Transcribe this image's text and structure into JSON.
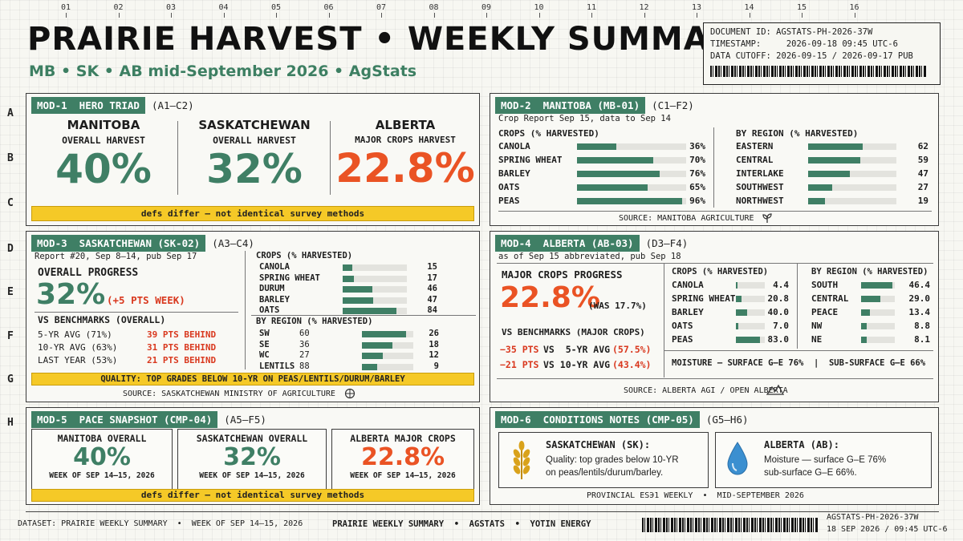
{
  "ruler": {
    "cols": [
      "01",
      "02",
      "03",
      "04",
      "05",
      "06",
      "07",
      "08",
      "09",
      "10",
      "11",
      "12",
      "13",
      "14",
      "15",
      "16"
    ],
    "rows": [
      "A",
      "B",
      "C",
      "D",
      "E",
      "F",
      "G",
      "H"
    ]
  },
  "header": {
    "title": "PRAIRIE HARVEST • WEEKLY SUMMARY",
    "subtitle": "MB • SK • AB mid-September 2026 • AgStats",
    "doc_id": "DOCUMENT ID: AGSTATS-PH-2026-37W",
    "timestamp": "TIMESTAMP:     2026-09-18 09:45 UTC-6",
    "cutoff": "DATA CUTOFF: 2026-09-15 / 2026-09-17 PUB"
  },
  "mod1": {
    "tag": "MOD-1  HERO TRIAD",
    "ref": "(A1–C2)",
    "cards": [
      {
        "title": "MANITOBA",
        "sub": "OVERALL HARVEST",
        "value": "40%"
      },
      {
        "title": "SASKATCHEWAN",
        "sub": "OVERALL HARVEST",
        "value": "32%"
      },
      {
        "title": "ALBERTA",
        "sub": "MAJOR CROPS HARVEST",
        "value": "22.8%"
      }
    ],
    "note": "defs differ — not identical survey methods"
  },
  "mod2": {
    "tag": "MOD-2  MANITOBA (MB-01)",
    "ref": "(C1–F2)",
    "report": "Crop Report Sep 15, data to Sep 14",
    "crops_title": "CROPS (% HARVESTED)",
    "crops": [
      {
        "name": "CANOLA",
        "value": 36,
        "label": "36%"
      },
      {
        "name": "SPRING WHEAT",
        "value": 70,
        "label": "70%"
      },
      {
        "name": "BARLEY",
        "value": 76,
        "label": "76%"
      },
      {
        "name": "OATS",
        "value": 65,
        "label": "65%"
      },
      {
        "name": "PEAS",
        "value": 96,
        "label": "96%"
      }
    ],
    "region_title": "BY REGION (% HARVESTED)",
    "regions": [
      {
        "name": "EASTERN",
        "value": 62,
        "label": "62"
      },
      {
        "name": "CENTRAL",
        "value": 59,
        "label": "59"
      },
      {
        "name": "INTERLAKE",
        "value": 47,
        "label": "47"
      },
      {
        "name": "SOUTHWEST",
        "value": 27,
        "label": "27"
      },
      {
        "name": "NORTHWEST",
        "value": 19,
        "label": "19"
      }
    ],
    "source": "SOURCE: MANITOBA AGRICULTURE"
  },
  "mod3": {
    "tag": "MOD-3  SASKATCHEWAN (SK-02)",
    "ref": "(A3–C4)",
    "report": "Report #20, Sep 8–14, pub Sep 17",
    "progress_label": "OVERALL PROGRESS",
    "progress_value": "32%",
    "progress_delta": "(+5 PTS WEEK)",
    "bench_title": "VS BENCHMARKS (OVERALL)",
    "bench": [
      {
        "name": "5-YR AVG (71%)",
        "value": "39 PTS BEHIND"
      },
      {
        "name": "10-YR AVG (63%)",
        "value": "31 PTS BEHIND"
      },
      {
        "name": "LAST YEAR (53%)",
        "value": "21 PTS BEHIND"
      }
    ],
    "crops_title": "CROPS (% HARVESTED)",
    "crops": [
      {
        "name": "CANOLA",
        "value": 15,
        "label": "15"
      },
      {
        "name": "SPRING WHEAT",
        "value": 17,
        "label": "17"
      },
      {
        "name": "DURUM",
        "value": 46,
        "label": "46"
      },
      {
        "name": "BARLEY",
        "value": 47,
        "label": "47"
      },
      {
        "name": "OATS",
        "value": 84,
        "label": "84"
      }
    ],
    "region_title": "BY REGION (% HARVESTED)",
    "regions": [
      {
        "name": "SW",
        "v1": "60",
        "value": 26,
        "label": "26"
      },
      {
        "name": "SE",
        "v1": "36",
        "value": 18,
        "label": "18"
      },
      {
        "name": "WC",
        "v1": "27",
        "value": 12,
        "label": "12"
      },
      {
        "name": "LENTILS",
        "v1": "88",
        "value": 9,
        "label": "9"
      }
    ],
    "quality": "QUALITY: TOP GRADES BELOW 10-YR ON PEAS/LENTILS/DURUM/BARLEY",
    "source": "SOURCE: SASKATCHEWAN MINISTRY OF AGRICULTURE"
  },
  "mod4": {
    "tag": "MOD-4  ALBERTA (AB-03)",
    "ref": "(D3–F4)",
    "report": "as of Sep 15 abbreviated, pub Sep 18",
    "progress_label": "MAJOR CROPS PROGRESS",
    "progress_value": "22.8%",
    "progress_was": "(WAS 17.7%)",
    "bench_title": "VS BENCHMARKS (MAJOR CROPS)",
    "bench": [
      {
        "pts": "−35 PTS",
        "vs": "VS  5-YR AVG",
        "avg": "(57.5%)"
      },
      {
        "pts": "−21 PTS",
        "vs": "VS 10-YR AVG",
        "avg": "(43.4%)"
      }
    ],
    "crops_title": "CROPS (% HARVESTED)",
    "crops": [
      {
        "name": "CANOLA",
        "value": 4.4,
        "label": "4.4"
      },
      {
        "name": "SPRING WHEAT",
        "value": 20.8,
        "label": "20.8"
      },
      {
        "name": "BARLEY",
        "value": 40.0,
        "label": "40.0"
      },
      {
        "name": "OATS",
        "value": 7.0,
        "label": "7.0"
      },
      {
        "name": "PEAS",
        "value": 83.0,
        "label": "83.0"
      }
    ],
    "region_title": "BY REGION (% HARVESTED)",
    "regions": [
      {
        "name": "SOUTH",
        "value": 46.4,
        "label": "46.4"
      },
      {
        "name": "CENTRAL",
        "value": 29.0,
        "label": "29.0"
      },
      {
        "name": "PEACE",
        "value": 13.4,
        "label": "13.4"
      },
      {
        "name": "NW",
        "value": 8.8,
        "label": "8.8"
      },
      {
        "name": "NE",
        "value": 8.1,
        "label": "8.1"
      }
    ],
    "moisture": "MOISTURE — SURFACE G–E 76%  |  SUB-SURFACE G–E 66%",
    "source": "SOURCE: ALBERTA AGI / OPEN ALBERTA"
  },
  "mod5": {
    "tag": "MOD-5  PACE SNAPSHOT (CMP-04)",
    "ref": "(A5–F5)",
    "cards": [
      {
        "title": "MANITOBA OVERALL",
        "value": "40%",
        "week": "WEEK OF SEP 14–15, 2026"
      },
      {
        "title": "SASKATCHEWAN OVERALL",
        "value": "32%",
        "week": "WEEK OF SEP 14–15, 2026"
      },
      {
        "title": "ALBERTA MAJOR CROPS",
        "value": "22.8%",
        "week": "WEEK OF SEP 14–15, 2026"
      }
    ],
    "note": "defs differ — not identical survey methods"
  },
  "mod6": {
    "tag": "MOD-6  CONDITIONS NOTES (CMP-05)",
    "ref": "(G5–H6)",
    "sk_title": "SASKATCHEWAN (SK):",
    "sk_line1": "Quality: top grades below 10-YR",
    "sk_line2": "on peas/lentils/durum/barley.",
    "ab_title": "ALBERTA (AB):",
    "ab_line1": "Moisture — surface G–E 76%",
    "ab_line2": "sub-surface G–E 66%.",
    "footer": "PROVINCIAL ESЭ1 WEEKLY  •  MID-SEPTEMBER 2026"
  },
  "footer": {
    "dataset": "DATASET: PRAIRIE WEEKLY SUMMARY  •  WEEK OF SEP 14–15, 2026",
    "center": "PRAIRIE WEEKLY SUMMARY  •  AGSTATS  •  YOTIN ENERGY",
    "id": "AGSTATS-PH-2026-37W",
    "date": "18 SEP 2026 / 09:45 UTC-6"
  },
  "colors": {
    "green": "#3f7f65",
    "orange": "#ea5324",
    "yellow": "#f5c927",
    "track": "#e3e3de"
  },
  "icons": [
    "wheat-icon",
    "water-drop-icon",
    "leaf-icon",
    "globe-icon",
    "mountains-icon"
  ]
}
